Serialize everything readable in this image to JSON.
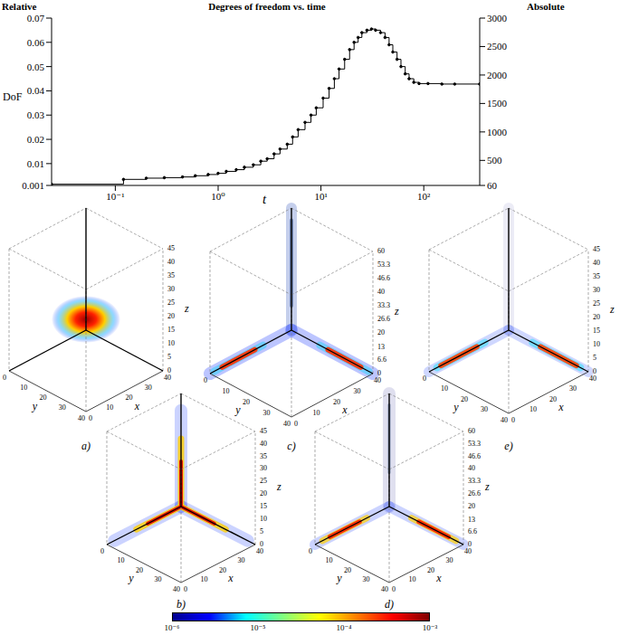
{
  "chart_data": {
    "type": "line",
    "title": "Degrees of freedom vs. time",
    "y_label": "DoF",
    "y_axis_title": "Relative",
    "y2_axis_title": "Absolute",
    "x_label": "t",
    "log": "x",
    "line_style": "step",
    "marker": "dot",
    "color": "#000000",
    "grid": false,
    "xlim": [
      0.024,
      350
    ],
    "xticks": [
      {
        "value": 0.1,
        "label": "10⁻¹"
      },
      {
        "value": 1,
        "label": "10⁰"
      },
      {
        "value": 10,
        "label": "10¹"
      },
      {
        "value": 100,
        "label": "10²"
      }
    ],
    "ylim": [
      0.001,
      0.07
    ],
    "yticks": [
      0.001,
      0.01,
      0.02,
      0.03,
      0.04,
      0.05,
      0.06,
      0.07
    ],
    "y2lim": [
      60,
      3000
    ],
    "y2ticks": [
      60,
      500,
      1000,
      1500,
      2000,
      2500,
      3000
    ],
    "x": [
      0.024,
      0.12,
      0.2,
      0.3,
      0.45,
      0.6,
      0.8,
      1.0,
      1.2,
      1.5,
      1.8,
      2.2,
      2.6,
      3.0,
      3.5,
      4.0,
      4.7,
      5.3,
      6.0,
      7.0,
      8.0,
      9.0,
      10.5,
      12,
      13.5,
      15,
      17,
      19,
      21,
      23,
      25,
      28,
      31,
      34,
      38,
      42,
      46,
      50,
      55,
      60,
      66,
      72,
      80,
      90,
      110,
      150,
      200,
      350
    ],
    "values": [
      0.0015,
      0.0035,
      0.004,
      0.0042,
      0.0045,
      0.005,
      0.0055,
      0.006,
      0.0068,
      0.0075,
      0.0085,
      0.0095,
      0.011,
      0.012,
      0.014,
      0.016,
      0.018,
      0.021,
      0.024,
      0.027,
      0.03,
      0.033,
      0.037,
      0.041,
      0.045,
      0.049,
      0.053,
      0.057,
      0.06,
      0.062,
      0.064,
      0.065,
      0.0655,
      0.065,
      0.064,
      0.062,
      0.059,
      0.056,
      0.053,
      0.05,
      0.047,
      0.045,
      0.0435,
      0.043,
      0.043,
      0.0428,
      0.0428,
      0.0428
    ]
  },
  "panels": [
    {
      "label": "a)",
      "x_label": "x",
      "y_label": "y",
      "z_label": "z",
      "xticks": [
        0,
        10,
        20,
        30,
        40
      ],
      "yticks": [
        0,
        10,
        20,
        30,
        40
      ],
      "zticks": [
        0,
        5,
        10,
        15,
        20,
        25,
        30,
        35,
        40,
        45
      ]
    },
    {
      "label": "b)",
      "x_label": "x",
      "y_label": "y",
      "z_label": "z",
      "xticks": [
        0,
        10,
        20,
        30,
        40
      ],
      "yticks": [
        0,
        10,
        20,
        30,
        40
      ],
      "zticks": [
        0,
        5,
        10,
        15,
        20,
        25,
        30,
        35,
        40,
        45
      ]
    },
    {
      "label": "c)",
      "x_label": "x",
      "y_label": "y",
      "z_label": "z",
      "xticks": [
        0,
        10,
        20,
        30,
        40
      ],
      "yticks": [
        0,
        10,
        20,
        30,
        40
      ],
      "zticks": [
        0,
        6.6,
        13,
        20,
        26.6,
        33.3,
        40,
        46.6,
        53.3,
        60
      ]
    },
    {
      "label": "d)",
      "x_label": "x",
      "y_label": "y",
      "z_label": "z",
      "xticks": [
        0,
        10,
        20,
        30,
        40
      ],
      "yticks": [
        0,
        10,
        20,
        30,
        40
      ],
      "zticks": [
        0,
        6.6,
        13,
        20,
        26.6,
        33.3,
        40,
        46.6,
        53.3,
        60
      ]
    },
    {
      "label": "e)",
      "x_label": "x",
      "y_label": "y",
      "z_label": "z",
      "xticks": [
        0,
        10,
        20,
        30,
        40
      ],
      "yticks": [
        0,
        10,
        20,
        30,
        40
      ],
      "zticks": [
        0,
        5,
        10,
        15,
        20,
        25,
        30,
        35,
        40,
        45
      ]
    }
  ],
  "colorbar": {
    "range": [
      1e-06,
      0.001
    ],
    "log": true,
    "ticks": [
      {
        "value": 1e-06,
        "label": "10⁻⁶"
      },
      {
        "value": 1e-05,
        "label": "10⁻⁵"
      },
      {
        "value": 0.0001,
        "label": "10⁻⁴"
      },
      {
        "value": 0.001,
        "label": "10⁻³"
      }
    ]
  }
}
